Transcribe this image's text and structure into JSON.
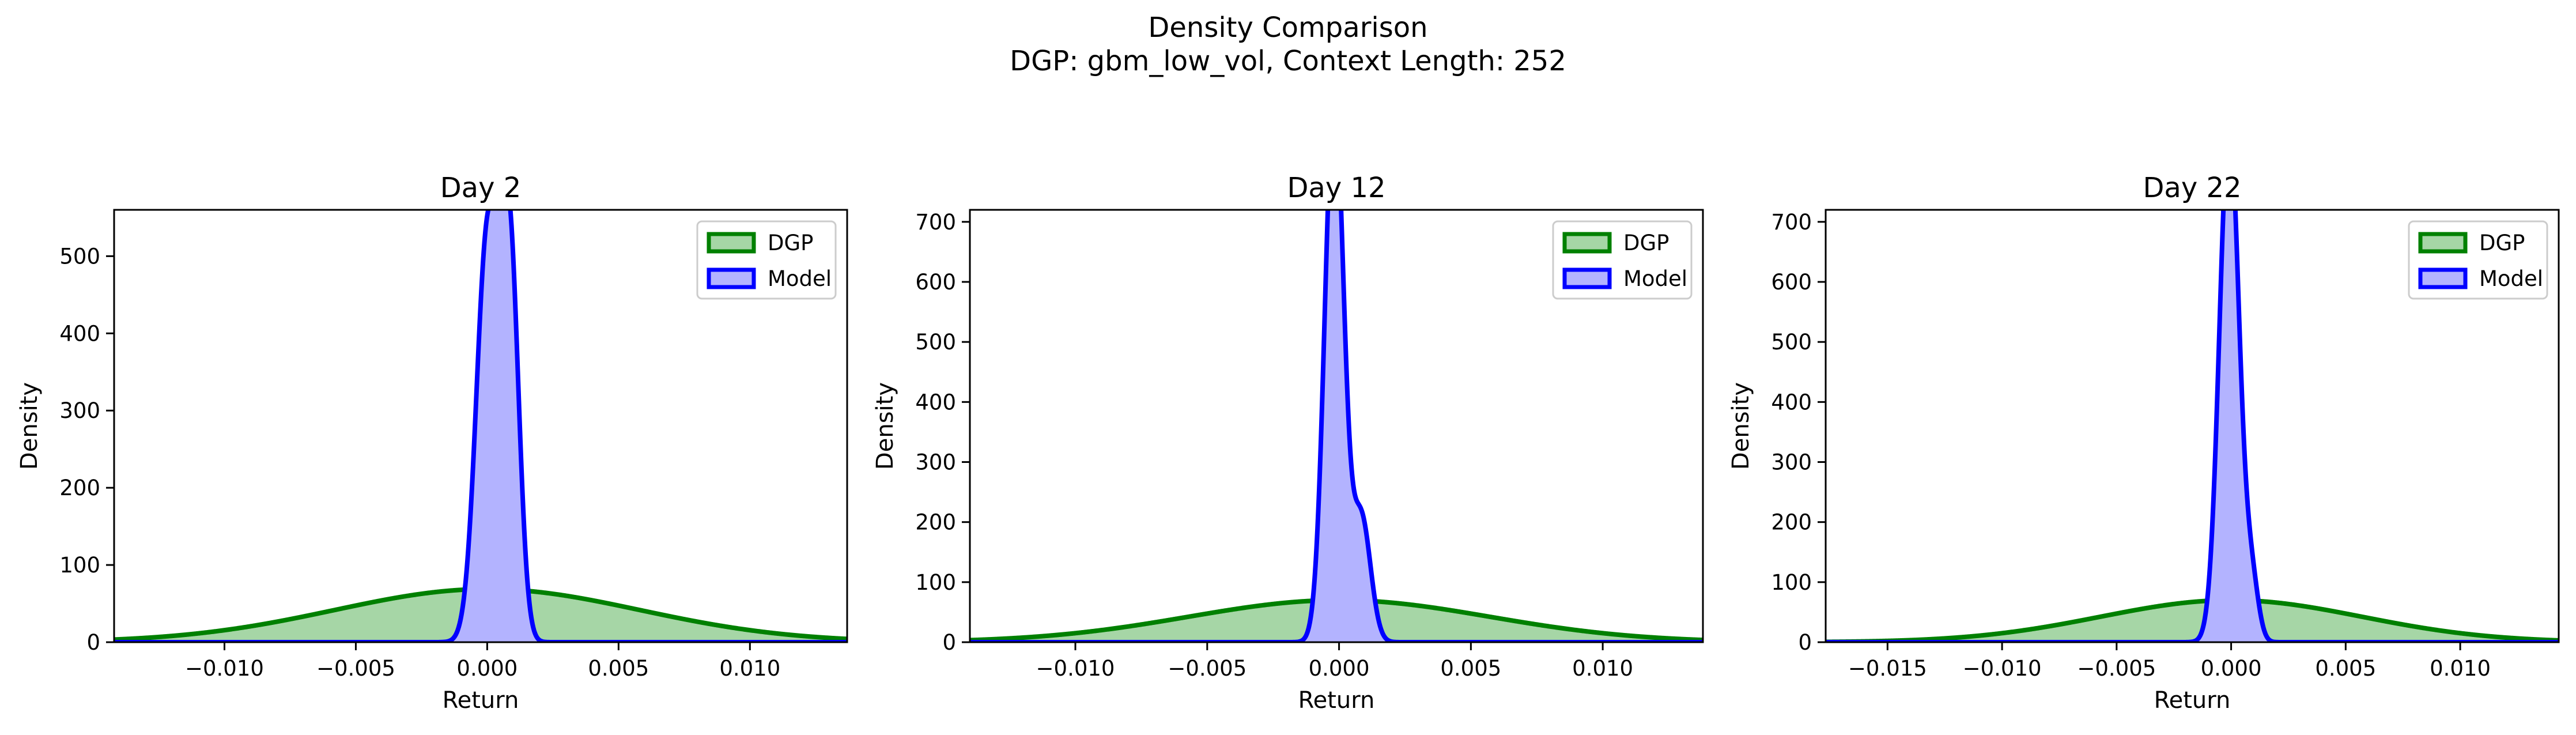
{
  "figure": {
    "title_line1": "Density Comparison",
    "title_line2": "DGP: gbm_low_vol, Context Length: 252"
  },
  "chart_data": [
    {
      "type": "area",
      "title": "Day 2",
      "xlabel": "Return",
      "ylabel": "Density",
      "xlim": [
        -0.0142,
        0.0137
      ],
      "ylim": [
        0,
        560
      ],
      "xticks": [
        -0.01,
        -0.005,
        0.0,
        0.005,
        0.01
      ],
      "xtick_labels": [
        "−0.010",
        "−0.005",
        "0.000",
        "0.005",
        "0.010"
      ],
      "yticks": [
        0,
        100,
        200,
        300,
        400,
        500
      ],
      "ytick_labels": [
        "0",
        "100",
        "200",
        "300",
        "400",
        "500"
      ],
      "legend_position": "top-right",
      "series": [
        {
          "name": "DGP",
          "kind": "normal",
          "mean": 0.0,
          "sd": 0.0058,
          "color": "#008000",
          "fill": "#a6d6a6"
        },
        {
          "name": "Model",
          "kind": "mixture",
          "components": [
            [
              2e-05,
              0.00043,
              0.57
            ],
            [
              0.00086,
              0.00035,
              0.43
            ]
          ],
          "color": "#0000ff",
          "fill": "#b3b3ff"
        }
      ]
    },
    {
      "type": "area",
      "title": "Day 12",
      "xlabel": "Return",
      "ylabel": "Density",
      "xlim": [
        -0.014,
        0.0138
      ],
      "ylim": [
        0,
        720
      ],
      "xticks": [
        -0.01,
        -0.005,
        0.0,
        0.005,
        0.01
      ],
      "xtick_labels": [
        "−0.010",
        "−0.005",
        "0.000",
        "0.005",
        "0.010"
      ],
      "yticks": [
        0,
        100,
        200,
        300,
        400,
        500,
        600,
        700
      ],
      "ytick_labels": [
        "0",
        "100",
        "200",
        "300",
        "400",
        "500",
        "600",
        "700"
      ],
      "legend_position": "top-right",
      "series": [
        {
          "name": "DGP",
          "kind": "normal",
          "mean": 0.0,
          "sd": 0.0057,
          "color": "#008000",
          "fill": "#a6d6a6"
        },
        {
          "name": "Model",
          "kind": "mixture",
          "components": [
            [
              -0.00018,
              0.00036,
              0.82
            ],
            [
              0.00085,
              0.00035,
              0.18
            ]
          ],
          "color": "#0000ff",
          "fill": "#b3b3ff"
        }
      ]
    },
    {
      "type": "area",
      "title": "Day 22",
      "xlabel": "Return",
      "ylabel": "Density",
      "xlim": [
        -0.0177,
        0.0143
      ],
      "ylim": [
        0,
        720
      ],
      "xticks": [
        -0.015,
        -0.01,
        -0.005,
        0.0,
        0.005,
        0.01
      ],
      "xtick_labels": [
        "−0.015",
        "−0.010",
        "−0.005",
        "0.000",
        "0.005",
        "0.010"
      ],
      "yticks": [
        0,
        100,
        200,
        300,
        400,
        500,
        600,
        700
      ],
      "ytick_labels": [
        "0",
        "100",
        "200",
        "300",
        "400",
        "500",
        "600",
        "700"
      ],
      "legend_position": "top-right",
      "series": [
        {
          "name": "DGP",
          "kind": "normal",
          "mean": 0.0,
          "sd": 0.0057,
          "color": "#008000",
          "fill": "#a6d6a6"
        },
        {
          "name": "Model",
          "kind": "mixture",
          "components": [
            [
              -8e-05,
              0.00043,
              0.93
            ],
            [
              0.0009,
              0.0003,
              0.07
            ]
          ],
          "color": "#0000ff",
          "fill": "#b3b3ff"
        }
      ]
    }
  ]
}
